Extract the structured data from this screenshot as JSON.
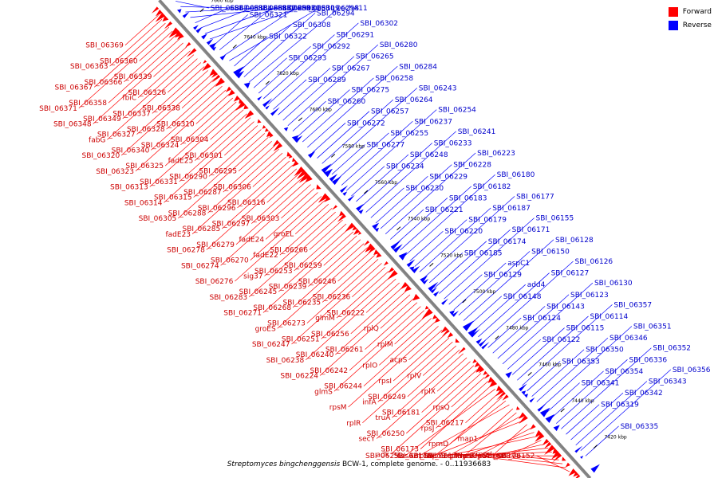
{
  "legend": {
    "forward": {
      "label": "Forward",
      "color": "#ff0000"
    },
    "reverse": {
      "label": "Reverse",
      "color": "#0000ff"
    }
  },
  "caption": {
    "organism": "Streptomyces bingchenggensis",
    "rest": " BCW-1, complete genome. - 0..11936683"
  },
  "scale_labels": [
    "7660 kbp",
    "7640 kbp",
    "7620 kbp",
    "7600 kbp",
    "7580 kbp",
    "7560 kbp",
    "7540 kbp",
    "7520 kbp",
    "7500 kbp",
    "7480 kbp",
    "7460 kbp",
    "7440 kbp",
    "7420 kbp"
  ],
  "reverse_labels": [
    "SBI_06347",
    "SBI_06334",
    "SBI_06332",
    "SBI_06330",
    "SBI_06318",
    "SBI_06317",
    "SBI_06312",
    "SBI_06309",
    "SBI_06321",
    "SBI_06299",
    "SBI_06311",
    "SBI_06298",
    "SBI_06322",
    "SBI_06308",
    "SBI_06294",
    "echA11",
    "SBI_06293",
    "SBI_06292",
    "SBI_06291",
    "SBI_06302",
    "SBI_06289",
    "SBI_06267",
    "SBI_06265",
    "SBI_06280",
    "SBI_06260",
    "SBI_06275",
    "SBI_06258",
    "SBI_06284",
    "SBI_06272",
    "SBI_06257",
    "SBI_06264",
    "SBI_06243",
    "SBI_06277",
    "SBI_06255",
    "SBI_06237",
    "SBI_06254",
    "SBI_06234",
    "SBI_06248",
    "SBI_06233",
    "SBI_06241",
    "SBI_06230",
    "SBI_06229",
    "SBI_06228",
    "SBI_06223",
    "SBI_06221",
    "SBI_06183",
    "SBI_06182",
    "SBI_06180",
    "SBI_06220",
    "SBI_06179",
    "SBI_06187",
    "SBI_06177",
    "SBI_06185",
    "SBI_06174",
    "SBI_06171",
    "SBI_06155",
    "SBI_06129",
    "aspC1",
    "SBI_06150",
    "SBI_06128",
    "SBI_06148",
    "add4",
    "SBI_06127",
    "SBI_06126",
    "SBI_06124",
    "SBI_06143",
    "SBI_06123",
    "SBI_06130",
    "SBI_06122",
    "SBI_06115",
    "SBI_06114",
    "SBI_06357",
    "SBI_06353",
    "SBI_06350",
    "SBI_06346",
    "SBI_06351",
    "SBI_06341",
    "SBI_06354",
    "SBI_06336",
    "SBI_06352",
    "SBI_06319",
    "SBI_06342",
    "SBI_06343",
    "SBI_06356",
    "SBI_06335"
  ],
  "forward_labels": [
    "SBI_06369",
    "SBI_06363",
    "SBI_06367",
    "SBI_06371",
    "SBI_06360",
    "SBI_06366",
    "SBI_06358",
    "SBI_06348",
    "SBI_06339",
    "fbiC",
    "SBI_06349",
    "fabG",
    "SBI_06326",
    "SBI_06337",
    "SBI_06327",
    "SBI_06320",
    "SBI_06338",
    "SBI_06328",
    "SBI_06340",
    "SBI_06323",
    "SBI_06310",
    "SBI_06324",
    "SBI_06325",
    "SBI_06313",
    "SBI_06304",
    "fadE25",
    "SBI_06331",
    "SBI_06314",
    "SBI_06301",
    "SBI_06290",
    "SBI_06315",
    "SBI_06305",
    "SBI_06295",
    "SBI_06287",
    "SBI_06288",
    "fadE23",
    "SBI_06306",
    "SBI_06296",
    "SBI_06285",
    "SBI_06278",
    "SBI_06316",
    "SBI_06297",
    "SBI_06279",
    "SBI_06274",
    "SBI_06303",
    "fadE24",
    "SBI_06270",
    "SBI_06276",
    "groEL",
    "fadE22",
    "sig37",
    "SBI_06283",
    "SBI_06266",
    "SBI_06253",
    "SBI_06245",
    "SBI_06271",
    "SBI_06259",
    "SBI_06239",
    "SBI_06268",
    "groES",
    "SBI_06246",
    "SBI_06235",
    "SBI_06273",
    "SBI_06247",
    "SBI_06236",
    "glmM",
    "SBI_06251",
    "SBI_06238",
    "SBI_06222",
    "SBI_06256",
    "SBI_06240",
    "SBI_06224",
    "rplQ",
    "SBI_06261",
    "SBI_06242",
    "glmS",
    "rplM",
    "rplO",
    "SBI_06244",
    "rpsM",
    "acpS",
    "rpsI",
    "infA",
    "rplR",
    "rplV",
    "SBI_06249",
    "truA",
    "secY",
    "rplX",
    "SBI_06181",
    "SBI_06250",
    "adk",
    "rpsQ",
    "rpsJ",
    "SBI_06173",
    "SBI_06252",
    "SBI_06217",
    "rpmD",
    "rplW",
    "fusA2",
    "map1",
    "rplN",
    "SBI_06172",
    "SBI_06175",
    "rpmJ",
    "rpsC",
    "SBI_06176",
    "rpoB",
    "tuf",
    "rpoC",
    "rpsK",
    "rplP",
    "SBI_06178",
    "rpsL",
    "rplA",
    "murB",
    "SBI_06152"
  ],
  "colors": {
    "forward": "#ff0000",
    "reverse": "#0000ff",
    "backbone": "#808080",
    "scale_tick": "#000000"
  }
}
